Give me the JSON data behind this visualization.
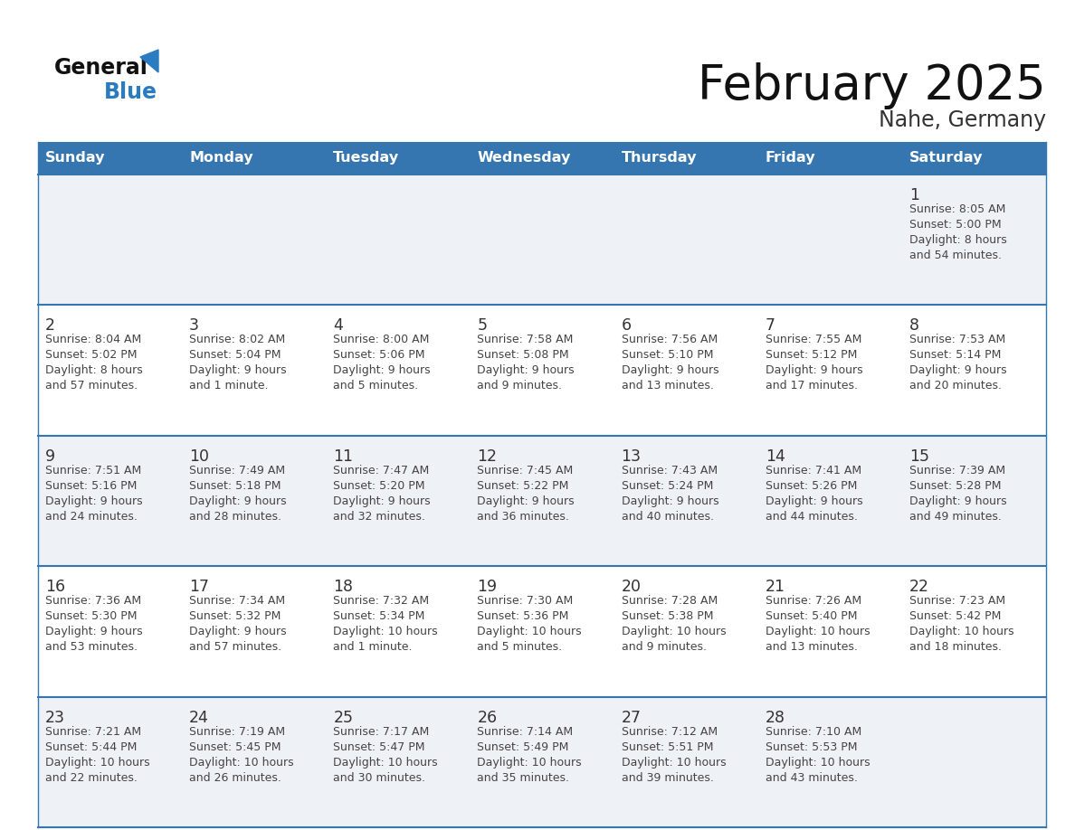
{
  "title": "February 2025",
  "subtitle": "Nahe, Germany",
  "days_of_week": [
    "Sunday",
    "Monday",
    "Tuesday",
    "Wednesday",
    "Thursday",
    "Friday",
    "Saturday"
  ],
  "header_bg_color": "#3575b0",
  "header_text_color": "#ffffff",
  "cell_bg_color_odd": "#eef2f7",
  "cell_bg_color_even": "#ffffff",
  "divider_color": "#3575b0",
  "day_number_color": "#333333",
  "cell_text_color": "#444444",
  "title_color": "#111111",
  "subtitle_color": "#333333",
  "background_color": "#ffffff",
  "logo_general_color": "#111111",
  "logo_blue_color": "#2a7bbf",
  "logo_triangle_color": "#2a7bbf",
  "calendar_data": [
    [
      null,
      null,
      null,
      null,
      null,
      null,
      {
        "day": 1,
        "sunrise": "8:05 AM",
        "sunset": "5:00 PM",
        "daylight": "8 hours\nand 54 minutes."
      }
    ],
    [
      {
        "day": 2,
        "sunrise": "8:04 AM",
        "sunset": "5:02 PM",
        "daylight": "8 hours\nand 57 minutes."
      },
      {
        "day": 3,
        "sunrise": "8:02 AM",
        "sunset": "5:04 PM",
        "daylight": "9 hours\nand 1 minute."
      },
      {
        "day": 4,
        "sunrise": "8:00 AM",
        "sunset": "5:06 PM",
        "daylight": "9 hours\nand 5 minutes."
      },
      {
        "day": 5,
        "sunrise": "7:58 AM",
        "sunset": "5:08 PM",
        "daylight": "9 hours\nand 9 minutes."
      },
      {
        "day": 6,
        "sunrise": "7:56 AM",
        "sunset": "5:10 PM",
        "daylight": "9 hours\nand 13 minutes."
      },
      {
        "day": 7,
        "sunrise": "7:55 AM",
        "sunset": "5:12 PM",
        "daylight": "9 hours\nand 17 minutes."
      },
      {
        "day": 8,
        "sunrise": "7:53 AM",
        "sunset": "5:14 PM",
        "daylight": "9 hours\nand 20 minutes."
      }
    ],
    [
      {
        "day": 9,
        "sunrise": "7:51 AM",
        "sunset": "5:16 PM",
        "daylight": "9 hours\nand 24 minutes."
      },
      {
        "day": 10,
        "sunrise": "7:49 AM",
        "sunset": "5:18 PM",
        "daylight": "9 hours\nand 28 minutes."
      },
      {
        "day": 11,
        "sunrise": "7:47 AM",
        "sunset": "5:20 PM",
        "daylight": "9 hours\nand 32 minutes."
      },
      {
        "day": 12,
        "sunrise": "7:45 AM",
        "sunset": "5:22 PM",
        "daylight": "9 hours\nand 36 minutes."
      },
      {
        "day": 13,
        "sunrise": "7:43 AM",
        "sunset": "5:24 PM",
        "daylight": "9 hours\nand 40 minutes."
      },
      {
        "day": 14,
        "sunrise": "7:41 AM",
        "sunset": "5:26 PM",
        "daylight": "9 hours\nand 44 minutes."
      },
      {
        "day": 15,
        "sunrise": "7:39 AM",
        "sunset": "5:28 PM",
        "daylight": "9 hours\nand 49 minutes."
      }
    ],
    [
      {
        "day": 16,
        "sunrise": "7:36 AM",
        "sunset": "5:30 PM",
        "daylight": "9 hours\nand 53 minutes."
      },
      {
        "day": 17,
        "sunrise": "7:34 AM",
        "sunset": "5:32 PM",
        "daylight": "9 hours\nand 57 minutes."
      },
      {
        "day": 18,
        "sunrise": "7:32 AM",
        "sunset": "5:34 PM",
        "daylight": "10 hours\nand 1 minute."
      },
      {
        "day": 19,
        "sunrise": "7:30 AM",
        "sunset": "5:36 PM",
        "daylight": "10 hours\nand 5 minutes."
      },
      {
        "day": 20,
        "sunrise": "7:28 AM",
        "sunset": "5:38 PM",
        "daylight": "10 hours\nand 9 minutes."
      },
      {
        "day": 21,
        "sunrise": "7:26 AM",
        "sunset": "5:40 PM",
        "daylight": "10 hours\nand 13 minutes."
      },
      {
        "day": 22,
        "sunrise": "7:23 AM",
        "sunset": "5:42 PM",
        "daylight": "10 hours\nand 18 minutes."
      }
    ],
    [
      {
        "day": 23,
        "sunrise": "7:21 AM",
        "sunset": "5:44 PM",
        "daylight": "10 hours\nand 22 minutes."
      },
      {
        "day": 24,
        "sunrise": "7:19 AM",
        "sunset": "5:45 PM",
        "daylight": "10 hours\nand 26 minutes."
      },
      {
        "day": 25,
        "sunrise": "7:17 AM",
        "sunset": "5:47 PM",
        "daylight": "10 hours\nand 30 minutes."
      },
      {
        "day": 26,
        "sunrise": "7:14 AM",
        "sunset": "5:49 PM",
        "daylight": "10 hours\nand 35 minutes."
      },
      {
        "day": 27,
        "sunrise": "7:12 AM",
        "sunset": "5:51 PM",
        "daylight": "10 hours\nand 39 minutes."
      },
      {
        "day": 28,
        "sunrise": "7:10 AM",
        "sunset": "5:53 PM",
        "daylight": "10 hours\nand 43 minutes."
      },
      null
    ]
  ]
}
